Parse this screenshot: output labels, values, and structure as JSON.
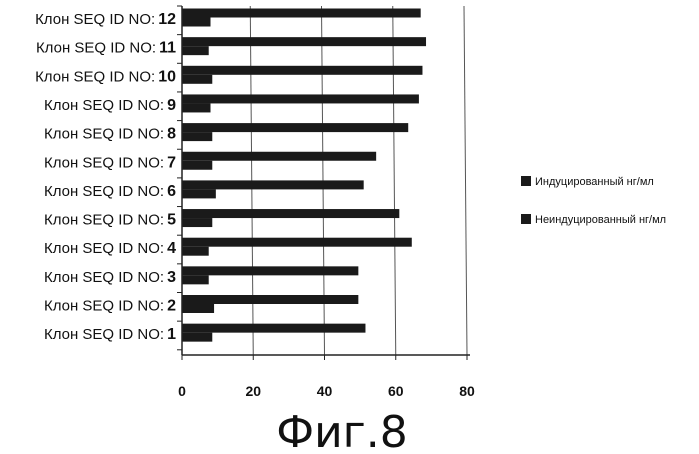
{
  "chart_data": {
    "type": "bar",
    "orientation": "horizontal",
    "categories": [
      {
        "prefix": "Клон SEQ ID NO:",
        "number": "12"
      },
      {
        "prefix": "Клон SEQ ID NO:",
        "number": "11"
      },
      {
        "prefix": "Клон SEQ ID NO:",
        "number": "10"
      },
      {
        "prefix": "Клон SEQ ID NO:",
        "number": "9"
      },
      {
        "prefix": "Клон SEQ ID NO:",
        "number": "8"
      },
      {
        "prefix": "Клон SEQ ID NO:",
        "number": "7"
      },
      {
        "prefix": "Клон SEQ ID NO:",
        "number": "6"
      },
      {
        "prefix": "Клон SEQ ID NO:",
        "number": "5"
      },
      {
        "prefix": "Клон SEQ ID NO:",
        "number": "4"
      },
      {
        "prefix": "Клон SEQ ID NO:",
        "number": "3"
      },
      {
        "prefix": "Клон SEQ ID NO:",
        "number": "2"
      },
      {
        "prefix": "Клон SEQ ID NO:",
        "number": "1"
      }
    ],
    "series": [
      {
        "name": "Индуцированный нг/мл",
        "values": [
          67,
          68.5,
          67.5,
          66.5,
          63.5,
          54.5,
          51,
          61,
          64.5,
          49.5,
          49.5,
          51.5
        ]
      },
      {
        "name": "Неиндуцированный нг/мл",
        "values": [
          8,
          7.5,
          8.5,
          8,
          8.5,
          8.5,
          9.5,
          8.5,
          7.5,
          7.5,
          9,
          8.5
        ]
      }
    ],
    "xlim": [
      0,
      80
    ],
    "xticks": [
      "0",
      "20",
      "40",
      "60",
      "80"
    ],
    "grid": "vertical",
    "legend": "right",
    "bar_color": "#1a1a1a"
  },
  "caption": "Фиг.8"
}
